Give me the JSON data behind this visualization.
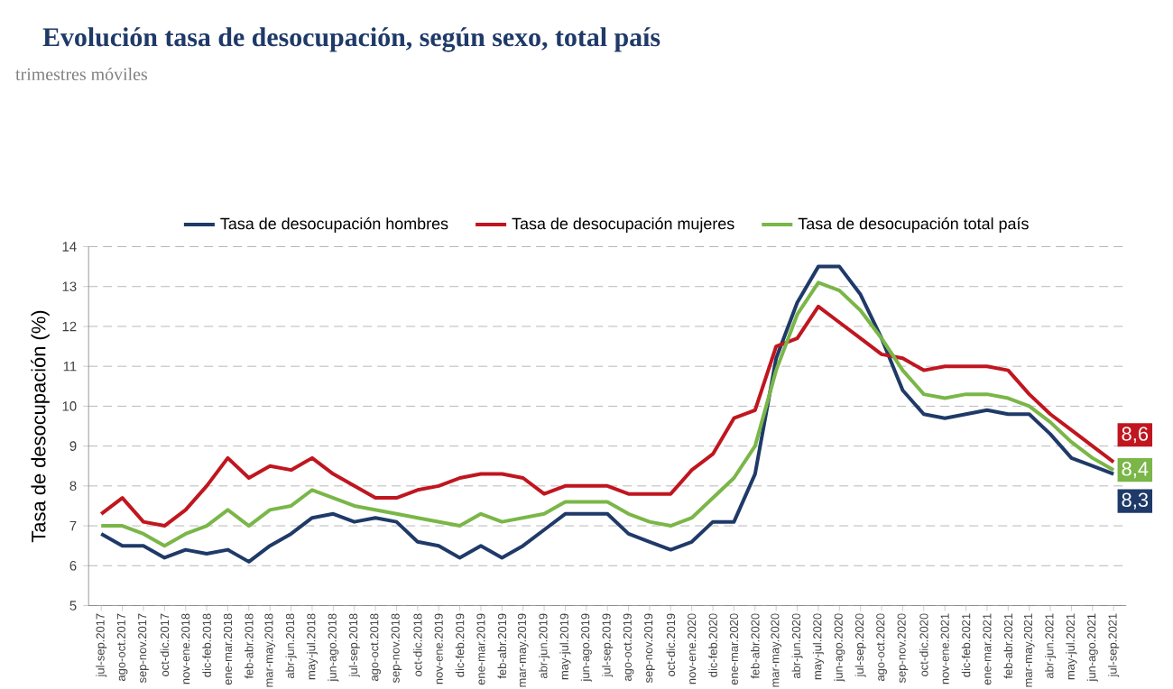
{
  "chart_data": {
    "type": "line",
    "title": "Evolución tasa de desocupación, según sexo, total país",
    "subtitle": "trimestres móviles",
    "ylabel": "Tasa de desocupación (%)",
    "categories": [
      "jul-sep.2017",
      "ago-oct.2017",
      "sep-nov.2017",
      "oct-dic.2017",
      "nov-ene.2018",
      "dic-feb.2018",
      "ene-mar.2018",
      "feb-abr.2018",
      "mar-may.2018",
      "abr-jun.2018",
      "may-jul.2018",
      "jun-ago.2018",
      "jul-sep.2018",
      "ago-oct.2018",
      "sep-nov.2018",
      "oct-dic.2018",
      "nov-ene.2019",
      "dic-feb.2019",
      "ene-mar.2019",
      "feb-abr.2019",
      "mar-may.2019",
      "abr-jun.2019",
      "may-jul.2019",
      "jun-ago.2019",
      "jul-sep.2019",
      "ago-oct.2019",
      "sep-nov.2019",
      "oct-dic.2019",
      "nov-ene.2020",
      "dic-feb.2020",
      "ene-mar.2020",
      "feb-abr.2020",
      "mar-may.2020",
      "abr-jun.2020",
      "may-jul.2020",
      "jun-ago.2020",
      "jul-sep.2020",
      "ago-oct.2020",
      "sep-nov.2020",
      "oct-dic.2020",
      "nov-ene.2021",
      "dic-feb.2021",
      "ene-mar.2021",
      "feb-abr.2021",
      "mar-may.2021",
      "abr-jun.2021",
      "may-jul.2021",
      "jun-ago.2021",
      "jul-sep.2021"
    ],
    "series": [
      {
        "name": "Tasa de desocupación hombres",
        "color": "#1f3a68",
        "values": [
          6.8,
          6.5,
          6.5,
          6.2,
          6.4,
          6.3,
          6.4,
          6.1,
          6.5,
          6.8,
          7.2,
          7.3,
          7.1,
          7.2,
          7.1,
          6.6,
          6.5,
          6.2,
          6.5,
          6.2,
          6.5,
          6.9,
          7.3,
          7.3,
          7.3,
          6.8,
          6.6,
          6.4,
          6.6,
          7.1,
          7.1,
          8.3,
          11.2,
          12.6,
          13.5,
          13.5,
          12.8,
          11.7,
          10.4,
          9.8,
          9.7,
          9.8,
          9.9,
          9.8,
          9.8,
          9.3,
          8.7,
          8.5,
          8.3
        ],
        "value_labels": [
          null,
          null,
          null,
          null,
          null,
          null,
          null,
          null,
          null,
          null,
          null,
          null,
          null,
          null,
          null,
          null,
          null,
          null,
          null,
          null,
          null,
          null,
          null,
          null,
          null,
          null,
          null,
          null,
          null,
          null,
          null,
          null,
          null,
          null,
          null,
          null,
          null,
          null,
          null,
          null,
          null,
          null,
          null,
          null,
          null,
          null,
          null,
          null,
          "8,3"
        ]
      },
      {
        "name": "Tasa de desocupación mujeres",
        "color": "#c0161f",
        "values": [
          7.3,
          7.7,
          7.1,
          7.0,
          7.4,
          8.0,
          8.7,
          8.2,
          8.5,
          8.4,
          8.7,
          8.3,
          8.0,
          7.7,
          7.7,
          7.9,
          8.0,
          8.2,
          8.3,
          8.3,
          8.2,
          7.8,
          8.0,
          8.0,
          8.0,
          7.8,
          7.8,
          7.8,
          8.4,
          8.8,
          9.7,
          9.9,
          11.5,
          11.7,
          12.5,
          12.1,
          11.7,
          11.3,
          11.2,
          10.9,
          11.0,
          11.0,
          11.0,
          10.9,
          10.3,
          9.8,
          9.4,
          9.0,
          8.6
        ],
        "value_labels": [
          null,
          null,
          null,
          null,
          null,
          null,
          null,
          null,
          null,
          null,
          null,
          null,
          null,
          null,
          null,
          null,
          null,
          null,
          null,
          null,
          null,
          null,
          null,
          null,
          null,
          null,
          null,
          null,
          null,
          null,
          null,
          null,
          null,
          null,
          null,
          null,
          null,
          null,
          null,
          null,
          null,
          null,
          null,
          null,
          null,
          null,
          null,
          null,
          "8,6"
        ]
      },
      {
        "name": "Tasa de desocupación total país",
        "color": "#7ab648",
        "values": [
          7.0,
          7.0,
          6.8,
          6.5,
          6.8,
          7.0,
          7.4,
          7.0,
          7.4,
          7.5,
          7.9,
          7.7,
          7.5,
          7.4,
          7.3,
          7.2,
          7.1,
          7.0,
          7.3,
          7.1,
          7.2,
          7.3,
          7.6,
          7.6,
          7.6,
          7.3,
          7.1,
          7.0,
          7.2,
          7.7,
          8.2,
          9.0,
          10.9,
          12.3,
          13.1,
          12.9,
          12.4,
          11.7,
          10.9,
          10.3,
          10.2,
          10.3,
          10.3,
          10.2,
          10.0,
          9.6,
          9.1,
          8.7,
          8.4
        ],
        "value_labels": [
          null,
          null,
          null,
          null,
          null,
          null,
          null,
          null,
          null,
          null,
          null,
          null,
          null,
          null,
          null,
          null,
          null,
          null,
          null,
          null,
          null,
          null,
          null,
          null,
          null,
          null,
          null,
          null,
          null,
          null,
          null,
          null,
          null,
          null,
          null,
          null,
          null,
          null,
          null,
          null,
          null,
          null,
          null,
          null,
          null,
          null,
          null,
          null,
          "8,4"
        ]
      }
    ],
    "ylim": [
      5,
      14
    ],
    "yticks": [
      5,
      6,
      7,
      8,
      9,
      10,
      11,
      12,
      13,
      14
    ],
    "grid": "y",
    "legend": "top",
    "marker": "none",
    "line_style": "solid"
  }
}
